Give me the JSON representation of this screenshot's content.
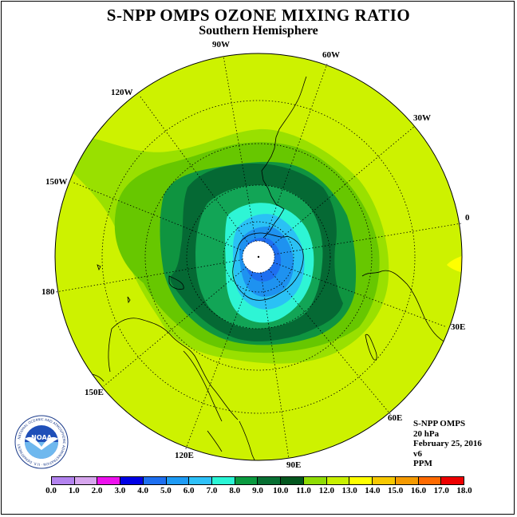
{
  "title": "S-NPP OMPS OZONE MIXING RATIO",
  "subtitle": "Southern Hemisphere",
  "longitude_labels": {
    "w90": "90W",
    "w60": "60W",
    "w30": "30W",
    "w120": "120W",
    "w150": "150W",
    "zero": "0",
    "e180": "180",
    "e30": "30E",
    "e150": "150E",
    "e60": "60E",
    "e120": "120E",
    "e90": "90E"
  },
  "info": {
    "instrument": "S-NPP OMPS",
    "level": "20 hPa",
    "date": "February 25, 2016",
    "version": "v6",
    "units": "PPM"
  },
  "logo": {
    "name": "noaa-logo",
    "text": "NOAA",
    "ring_text": "NATIONAL OCEANIC AND ATMOSPHERIC ADMINISTRATION · U.S. DEPARTMENT OF COMMERCE"
  },
  "colorbar": {
    "ticks": [
      "0.0",
      "1.0",
      "2.0",
      "3.0",
      "4.0",
      "5.0",
      "6.0",
      "7.0",
      "8.0",
      "9.0",
      "10.0",
      "11.0",
      "12.0",
      "13.0",
      "14.0",
      "15.0",
      "16.0",
      "17.0",
      "18.0"
    ],
    "colors": [
      "#b383ef",
      "#d7a6ee",
      "#ee11ee",
      "#0000e6",
      "#1e6ff0",
      "#1e9bf5",
      "#2ec1f8",
      "#2af5d5",
      "#0a9a3f",
      "#076f32",
      "#03561e",
      "#8fdc04",
      "#c8f000",
      "#ffff00",
      "#f7c800",
      "#f59a00",
      "#ff6a00",
      "#ee0000",
      "#8b5a3c"
    ]
  },
  "map_colors": {
    "lt11": "#cdf200",
    "c10_11": "#99e000",
    "c9_10": "#67c700",
    "c8_9": "#0f9440",
    "c7_8": "#056934",
    "c6_7": "#12a556",
    "c5_6": "#2ef5d5",
    "c4_5": "#2ac1f5",
    "c3_4": "#1e92f0",
    "c_low": "#1e6ff0",
    "yellow": "#ffff00"
  }
}
